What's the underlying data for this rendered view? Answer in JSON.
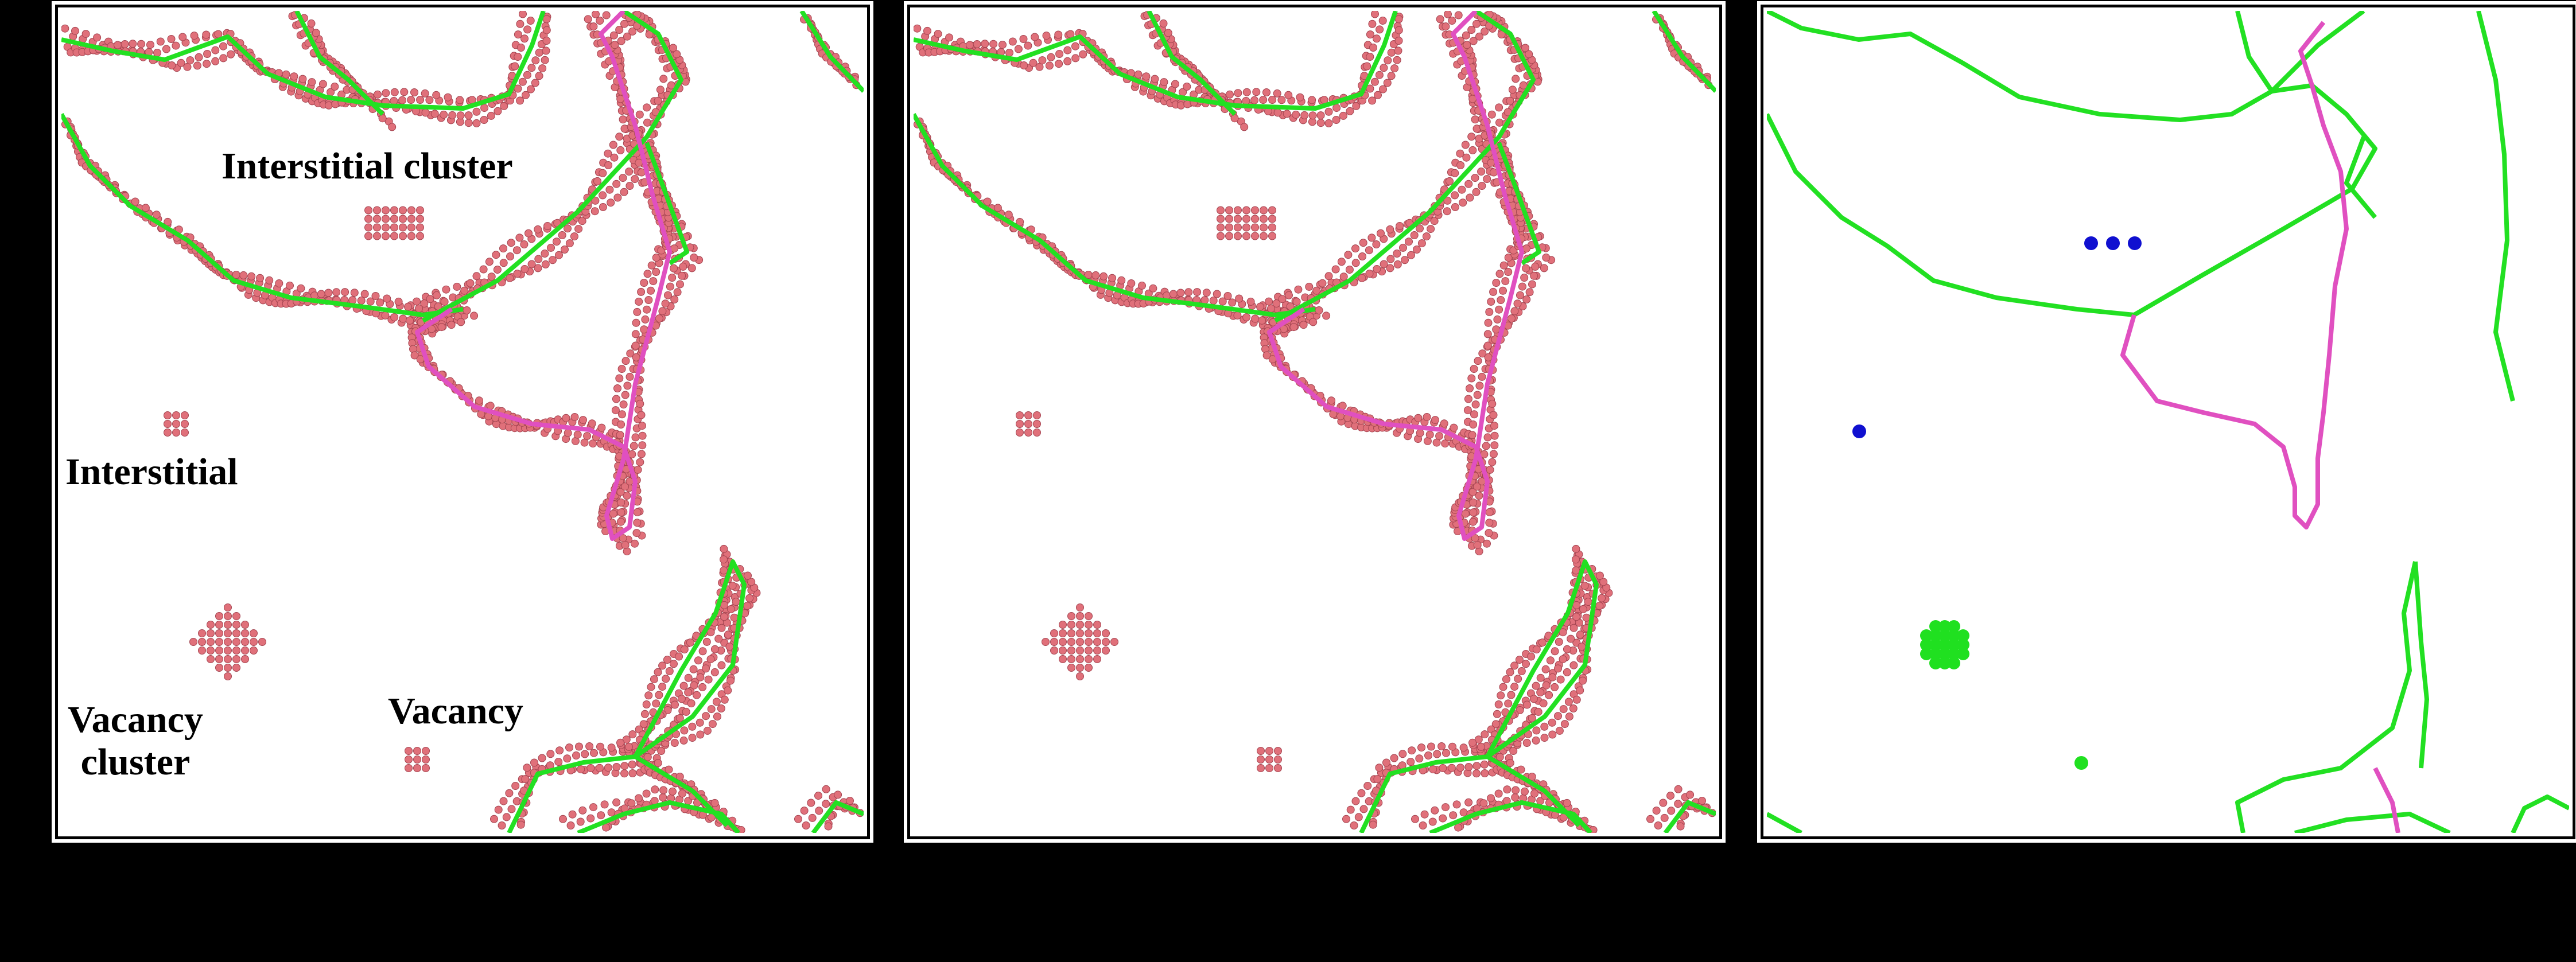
{
  "labels": {
    "interstitial_cluster": "Interstitial cluster",
    "interstitial": "Interstitial",
    "vacancy_cluster_line1": "Vacancy",
    "vacancy_cluster_line2": "cluster",
    "vacancy": "Vacancy"
  },
  "colors": {
    "atom": "#e0707a",
    "atom_stroke": "#a34450",
    "dislocation_green": "#22e022",
    "dislocation_magenta": "#e050c0",
    "interstitial_marker": "#1010d0",
    "vacancy_marker": "#20e020",
    "background": "#000000"
  },
  "panels": [
    {
      "id": "a",
      "content": "atoms-and-dislocations"
    },
    {
      "id": "b",
      "content": "atoms-and-dislocations"
    },
    {
      "id": "c",
      "content": "dislocations-and-point-defects"
    }
  ]
}
